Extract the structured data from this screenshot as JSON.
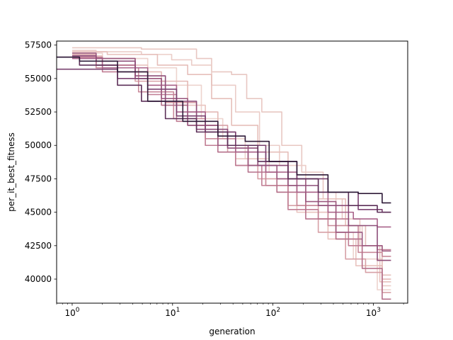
{
  "chart_data": {
    "type": "line",
    "title": "",
    "xlabel": "generation",
    "ylabel": "per_it_best_fitness",
    "xscale": "log",
    "xlim": [
      0.7,
      2200
    ],
    "ylim": [
      38200,
      57800
    ],
    "grid": false,
    "legend": "none",
    "x_ticks": [
      {
        "value": 1,
        "base": "10",
        "exp": "0"
      },
      {
        "value": 10,
        "base": "10",
        "exp": "1"
      },
      {
        "value": 100,
        "base": "10",
        "exp": "2"
      },
      {
        "value": 1000,
        "base": "10",
        "exp": "3"
      }
    ],
    "y_ticks": [
      {
        "value": 40000,
        "label": "40000"
      },
      {
        "value": 42500,
        "label": "42500"
      },
      {
        "value": 45000,
        "label": "45000"
      },
      {
        "value": 47500,
        "label": "47500"
      },
      {
        "value": 50000,
        "label": "50000"
      },
      {
        "value": 52500,
        "label": "52500"
      },
      {
        "value": 55000,
        "label": "55000"
      },
      {
        "value": 57500,
        "label": "57500"
      }
    ],
    "series": [
      {
        "color": "#e8c7c2",
        "points": [
          [
            1,
            57300
          ],
          [
            3,
            57300
          ],
          [
            8,
            57200
          ],
          [
            15,
            57200
          ],
          [
            20,
            56500
          ],
          [
            30,
            55500
          ],
          [
            50,
            55300
          ],
          [
            60,
            53500
          ],
          [
            100,
            52500
          ],
          [
            150,
            50000
          ],
          [
            250,
            48000
          ],
          [
            400,
            46000
          ],
          [
            600,
            44500
          ],
          [
            900,
            42500
          ],
          [
            1500,
            39800
          ]
        ]
      },
      {
        "color": "#ebcdc8",
        "points": [
          [
            1,
            57100
          ],
          [
            3,
            57000
          ],
          [
            8,
            56800
          ],
          [
            12,
            56400
          ],
          [
            20,
            56000
          ],
          [
            30,
            54500
          ],
          [
            60,
            52500
          ],
          [
            90,
            50000
          ],
          [
            150,
            48500
          ],
          [
            300,
            46500
          ],
          [
            600,
            44000
          ],
          [
            1000,
            41500
          ],
          [
            1500,
            39500
          ]
        ]
      },
      {
        "color": "#e6bfba",
        "points": [
          [
            1,
            57000
          ],
          [
            5,
            56800
          ],
          [
            10,
            56000
          ],
          [
            20,
            55300
          ],
          [
            30,
            53500
          ],
          [
            50,
            51500
          ],
          [
            100,
            49500
          ],
          [
            200,
            47500
          ],
          [
            400,
            46000
          ],
          [
            700,
            44000
          ],
          [
            1000,
            42500
          ],
          [
            1500,
            40300
          ]
        ]
      },
      {
        "color": "#edd3ce",
        "points": [
          [
            1,
            56900
          ],
          [
            4,
            56500
          ],
          [
            8,
            55800
          ],
          [
            15,
            54500
          ],
          [
            25,
            52000
          ],
          [
            40,
            50500
          ],
          [
            70,
            49000
          ],
          [
            120,
            48000
          ],
          [
            250,
            45500
          ],
          [
            500,
            43500
          ],
          [
            800,
            41500
          ],
          [
            1500,
            39200
          ]
        ]
      },
      {
        "color": "#e4b9b5",
        "points": [
          [
            1,
            56800
          ],
          [
            3,
            56500
          ],
          [
            6,
            55500
          ],
          [
            10,
            54800
          ],
          [
            20,
            52500
          ],
          [
            40,
            50000
          ],
          [
            80,
            48500
          ],
          [
            150,
            46500
          ],
          [
            300,
            45000
          ],
          [
            600,
            43000
          ],
          [
            1000,
            41000
          ],
          [
            1500,
            40000
          ]
        ]
      },
      {
        "color": "#e9c4bf",
        "points": [
          [
            1,
            56700
          ],
          [
            4,
            56000
          ],
          [
            8,
            54500
          ],
          [
            15,
            53000
          ],
          [
            30,
            51000
          ],
          [
            60,
            49000
          ],
          [
            120,
            47000
          ],
          [
            250,
            45000
          ],
          [
            500,
            43000
          ],
          [
            900,
            41000
          ],
          [
            1500,
            39800
          ]
        ]
      },
      {
        "color": "#d7a0a6",
        "points": [
          [
            1,
            56800
          ],
          [
            3,
            56000
          ],
          [
            6,
            54800
          ],
          [
            12,
            53200
          ],
          [
            25,
            51500
          ],
          [
            50,
            49500
          ],
          [
            100,
            47500
          ],
          [
            200,
            45500
          ],
          [
            400,
            43500
          ],
          [
            700,
            41500
          ],
          [
            1000,
            40500
          ],
          [
            1500,
            39000
          ]
        ]
      },
      {
        "color": "#c98a9a",
        "points": [
          [
            1,
            56500
          ],
          [
            3,
            55800
          ],
          [
            7,
            54000
          ],
          [
            15,
            52000
          ],
          [
            30,
            50500
          ],
          [
            60,
            48500
          ],
          [
            120,
            47000
          ],
          [
            250,
            45500
          ],
          [
            500,
            44000
          ],
          [
            1000,
            42000
          ],
          [
            1500,
            41700
          ]
        ]
      },
      {
        "color": "#c07d93",
        "points": [
          [
            1,
            56600
          ],
          [
            4,
            55500
          ],
          [
            8,
            53800
          ],
          [
            15,
            51800
          ],
          [
            30,
            50000
          ],
          [
            60,
            48500
          ],
          [
            100,
            47000
          ],
          [
            200,
            45200
          ],
          [
            400,
            44500
          ],
          [
            800,
            42500
          ],
          [
            1500,
            42200
          ]
        ]
      },
      {
        "color": "#b5718b",
        "points": [
          [
            1,
            56700
          ],
          [
            3,
            56000
          ],
          [
            6,
            55000
          ],
          [
            10,
            53000
          ],
          [
            20,
            51500
          ],
          [
            40,
            49500
          ],
          [
            80,
            48000
          ],
          [
            150,
            46500
          ],
          [
            300,
            44500
          ],
          [
            600,
            43000
          ],
          [
            1000,
            40800
          ],
          [
            1500,
            38500
          ]
        ]
      },
      {
        "color": "#a9638a",
        "points": [
          [
            1,
            56500
          ],
          [
            4,
            55800
          ],
          [
            8,
            54500
          ],
          [
            15,
            52500
          ],
          [
            30,
            51000
          ],
          [
            60,
            49500
          ],
          [
            120,
            48000
          ],
          [
            250,
            46500
          ],
          [
            500,
            45000
          ],
          [
            800,
            44500
          ],
          [
            1500,
            43900
          ]
        ]
      },
      {
        "color": "#9c5a80",
        "points": [
          [
            1,
            56900
          ],
          [
            3,
            56500
          ],
          [
            6,
            55000
          ],
          [
            10,
            53500
          ],
          [
            20,
            51500
          ],
          [
            40,
            50000
          ],
          [
            80,
            48500
          ],
          [
            150,
            47500
          ],
          [
            300,
            45800
          ],
          [
            600,
            43500
          ],
          [
            1000,
            42500
          ],
          [
            1500,
            42100
          ]
        ]
      },
      {
        "color": "#8e4e79",
        "points": [
          [
            1,
            56700
          ],
          [
            3,
            56300
          ],
          [
            6,
            55200
          ],
          [
            12,
            53300
          ],
          [
            25,
            51200
          ],
          [
            50,
            49800
          ],
          [
            100,
            48500
          ],
          [
            200,
            47000
          ],
          [
            400,
            45500
          ],
          [
            800,
            44000
          ],
          [
            1500,
            41400
          ]
        ]
      },
      {
        "color": "#7a4270",
        "points": [
          [
            0.7,
            55700
          ],
          [
            2,
            55700
          ],
          [
            4,
            55000
          ],
          [
            8,
            54200
          ],
          [
            15,
            52200
          ],
          [
            30,
            51000
          ],
          [
            60,
            50000
          ],
          [
            120,
            48800
          ],
          [
            250,
            47500
          ],
          [
            500,
            46500
          ],
          [
            1000,
            45200
          ],
          [
            1500,
            45000
          ]
        ]
      },
      {
        "color": "#5c2f58",
        "points": [
          [
            0.7,
            56600
          ],
          [
            2,
            56000
          ],
          [
            4,
            54500
          ],
          [
            6,
            53300
          ],
          [
            12,
            52000
          ],
          [
            25,
            51000
          ],
          [
            50,
            50000
          ],
          [
            100,
            48800
          ],
          [
            200,
            47500
          ],
          [
            400,
            46500
          ],
          [
            800,
            45500
          ],
          [
            1500,
            45000
          ]
        ]
      },
      {
        "color": "#2e1a38",
        "points": [
          [
            0.7,
            56600
          ],
          [
            2,
            56300
          ],
          [
            4,
            55500
          ],
          [
            8,
            53300
          ],
          [
            20,
            51800
          ],
          [
            40,
            50700
          ],
          [
            70,
            50300
          ],
          [
            120,
            48800
          ],
          [
            250,
            47800
          ],
          [
            500,
            46500
          ],
          [
            1000,
            46400
          ],
          [
            1500,
            45700
          ]
        ]
      }
    ]
  }
}
